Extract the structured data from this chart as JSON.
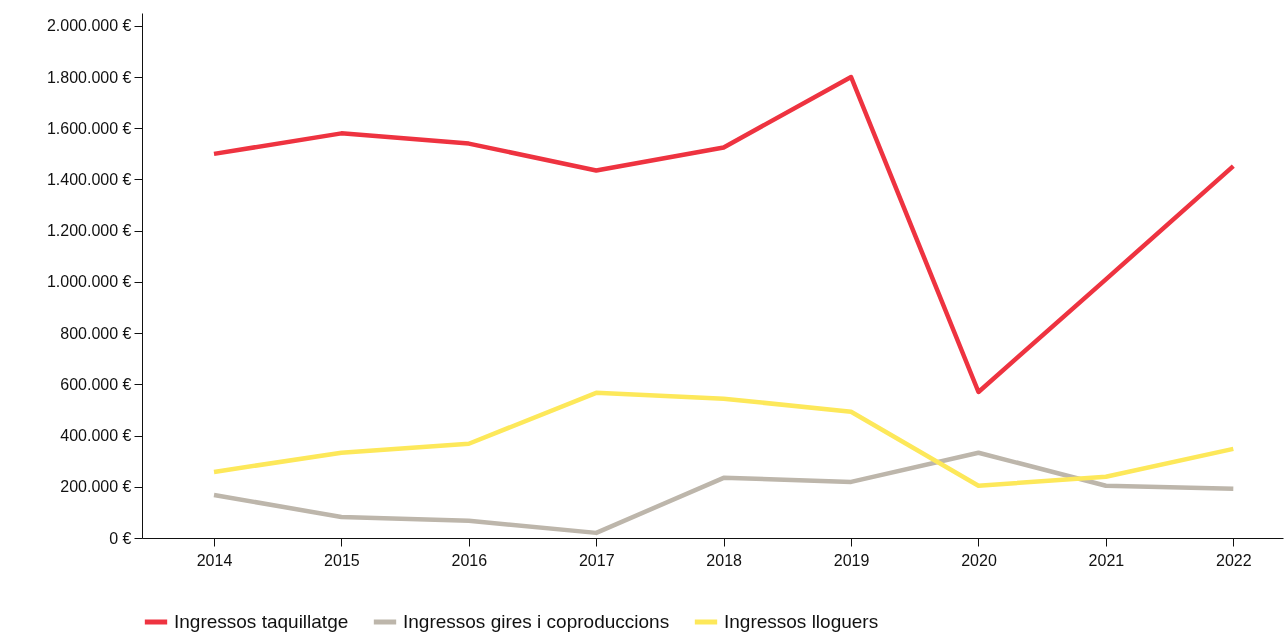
{
  "chart_data": {
    "type": "line",
    "categories": [
      "2014",
      "2015",
      "2016",
      "2017",
      "2018",
      "2019",
      "2020",
      "2021",
      "2022"
    ],
    "series": [
      {
        "name": "Ingressos taquillatge",
        "color": "#ee3340",
        "values": [
          1500000,
          1580000,
          1540000,
          1435000,
          1525000,
          1800000,
          570000,
          1010000,
          1452000
        ]
      },
      {
        "name": "Ingressos gires i coproduccions",
        "color": "#bdb6ab",
        "values": [
          168000,
          82000,
          67000,
          20000,
          235000,
          219000,
          333000,
          204000,
          192000
        ]
      },
      {
        "name": "Ingressos lloguers",
        "color": "#fde85a",
        "values": [
          258000,
          333000,
          368000,
          567000,
          544000,
          493000,
          204000,
          239000,
          348000
        ]
      }
    ],
    "ylim": [
      0,
      2050000
    ],
    "yticks": [
      {
        "value": 0,
        "label": "0 €"
      },
      {
        "value": 200000,
        "label": "200.000 €"
      },
      {
        "value": 400000,
        "label": "400.000 €"
      },
      {
        "value": 600000,
        "label": "600.000 €"
      },
      {
        "value": 800000,
        "label": "800.000 €"
      },
      {
        "value": 1000000,
        "label": "1.000.000 €"
      },
      {
        "value": 1200000,
        "label": "1.200.000 €"
      },
      {
        "value": 1400000,
        "label": "1.400.000 €"
      },
      {
        "value": 1600000,
        "label": "1.600.000 €"
      },
      {
        "value": 1800000,
        "label": "1.800.000 €"
      },
      {
        "value": 2000000,
        "label": "2.000.000 €"
      }
    ],
    "grid": false,
    "legend": "bottom",
    "marker": "none",
    "line_style": "solid"
  }
}
